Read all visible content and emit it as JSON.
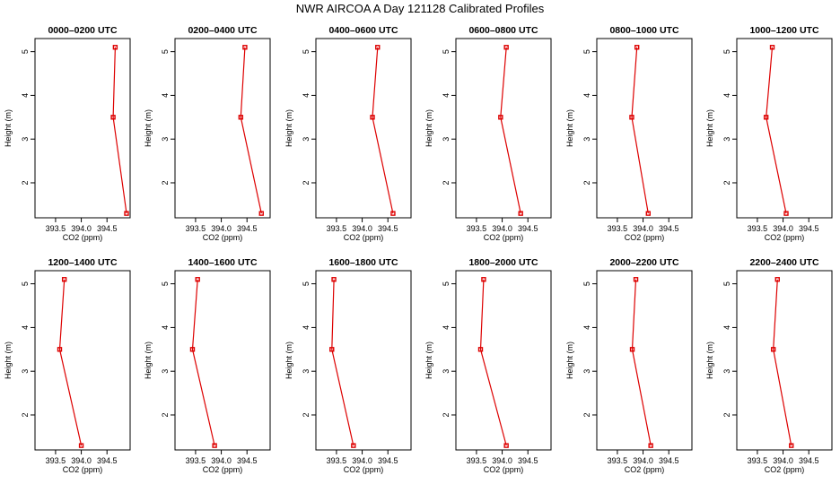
{
  "title": "NWR AIRCOA A  Day 121128  Calibrated Profiles",
  "colors": {
    "line": "#dd0000",
    "marker": "#dd0000",
    "axis": "#000000"
  },
  "chart_data": {
    "type": "line",
    "xlabel": "CO2 (ppm)",
    "ylabel": "Height (m)",
    "xlim": [
      393.1,
      394.95
    ],
    "ylim": [
      1.2,
      5.3
    ],
    "xticks": [
      393.5,
      394.0,
      394.5
    ],
    "xtick_labels": [
      "393.5",
      "394.0",
      "394.5"
    ],
    "yticks": [
      2,
      3,
      4,
      5
    ],
    "ytick_labels": [
      "2",
      "3",
      "4",
      "5"
    ],
    "heights": [
      5.1,
      3.5,
      1.3
    ],
    "panels": [
      {
        "title": "0000–0200 UTC",
        "co2": [
          394.66,
          394.62,
          394.88
        ]
      },
      {
        "title": "0200–0400 UTC",
        "co2": [
          394.46,
          394.38,
          394.78
        ]
      },
      {
        "title": "0400–0600 UTC",
        "co2": [
          394.3,
          394.2,
          394.6
        ]
      },
      {
        "title": "0600–0800 UTC",
        "co2": [
          394.08,
          393.97,
          394.36
        ]
      },
      {
        "title": "0800–1000 UTC",
        "co2": [
          393.88,
          393.78,
          394.1
        ]
      },
      {
        "title": "1000–1200 UTC",
        "co2": [
          393.79,
          393.67,
          394.06
        ]
      },
      {
        "title": "1200–1400 UTC",
        "co2": [
          393.67,
          393.58,
          394.0
        ]
      },
      {
        "title": "1400–1600 UTC",
        "co2": [
          393.54,
          393.44,
          393.87
        ]
      },
      {
        "title": "1600–1800 UTC",
        "co2": [
          393.45,
          393.41,
          393.83
        ]
      },
      {
        "title": "1800–2000 UTC",
        "co2": [
          393.64,
          393.58,
          394.08
        ]
      },
      {
        "title": "2000–2200 UTC",
        "co2": [
          393.86,
          393.79,
          394.15
        ]
      },
      {
        "title": "2200–2400 UTC",
        "co2": [
          393.89,
          393.81,
          394.16
        ]
      }
    ]
  }
}
